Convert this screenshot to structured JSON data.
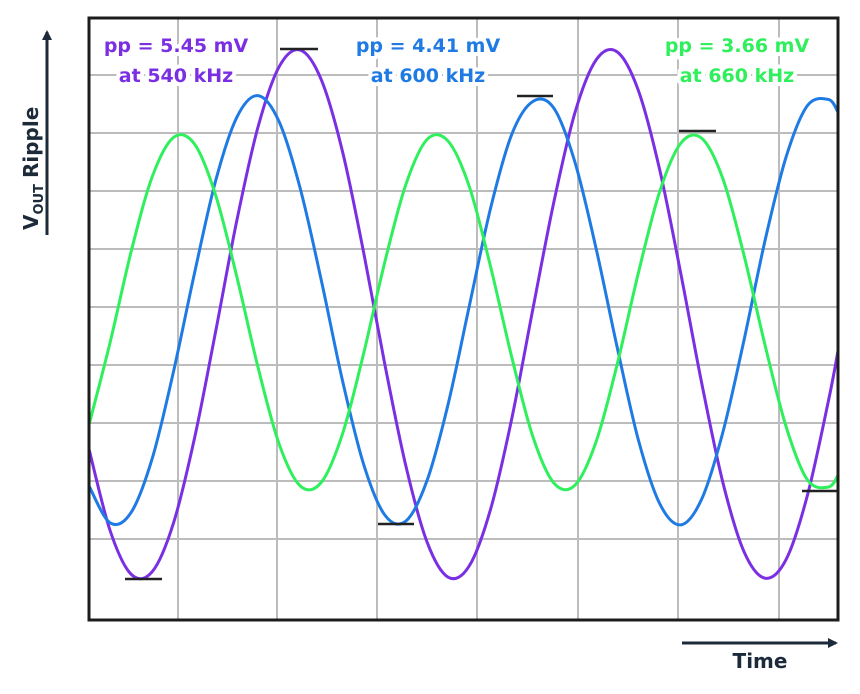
{
  "chart_data": {
    "type": "line",
    "y_label_parts": [
      "V",
      "OUT",
      "Ripple"
    ],
    "x_label": "Time",
    "xlim": [
      0,
      4.43
    ],
    "ylim": [
      -3.15,
      3.05
    ],
    "x": [
      0,
      0.125,
      0.25,
      0.375,
      0.5,
      0.625,
      0.75,
      0.875,
      1,
      1.125,
      1.25,
      1.375,
      1.5,
      1.625,
      1.75,
      1.875,
      2,
      2.125,
      2.25,
      2.375,
      2.5,
      2.625,
      2.75,
      2.875,
      3,
      3.125,
      3.25,
      3.375,
      3.5,
      3.625,
      3.75,
      3.875,
      4,
      4.125,
      4.25,
      4.375,
      4.43
    ],
    "series": [
      {
        "name": "pp = 5.45 mV",
        "frequency_label": "at 540 kHz",
        "color": "#7b2fe3",
        "values": [
          -1.39,
          -2.23,
          -2.68,
          -2.65,
          -2.15,
          -1.27,
          -0.17,
          0.97,
          1.93,
          2.55,
          2.72,
          2.41,
          1.67,
          0.63,
          -0.52,
          -1.57,
          -2.35,
          -2.71,
          -2.59,
          -2.01,
          -1.08,
          0.05,
          1.16,
          2.08,
          2.62,
          2.7,
          2.3,
          1.49,
          0.42,
          -0.72,
          -1.74,
          -2.45,
          -2.72,
          -2.52,
          -1.86,
          -0.88,
          -0.38
        ]
      },
      {
        "name": "pp = 4.41 mV",
        "frequency_label": "at 600 kHz",
        "color": "#1f7be3",
        "values": [
          -1.77,
          -2.15,
          -2.04,
          -1.48,
          -0.59,
          0.43,
          1.38,
          2.03,
          2.25,
          1.98,
          1.29,
          0.34,
          -0.69,
          -1.55,
          -2.07,
          -2.13,
          -1.71,
          -0.92,
          0.09,
          1.09,
          1.85,
          2.19,
          2.12,
          1.56,
          0.67,
          -0.35,
          -1.3,
          -1.95,
          -2.17,
          -1.9,
          -1.21,
          -0.26,
          0.77,
          1.63,
          2.15,
          2.21,
          2.08
        ]
      },
      {
        "name": "pp = 3.66 mV",
        "frequency_label": "at 660 kHz",
        "color": "#2ff05c",
        "values": [
          -1.14,
          -0.29,
          0.65,
          1.42,
          1.82,
          1.75,
          1.22,
          0.38,
          -0.55,
          -1.34,
          -1.77,
          -1.73,
          -1.23,
          -0.4,
          0.54,
          1.34,
          1.8,
          1.78,
          1.31,
          0.49,
          -0.44,
          -1.26,
          -1.74,
          -1.76,
          -1.31,
          -0.51,
          0.43,
          1.26,
          1.76,
          1.81,
          1.39,
          0.6,
          -0.33,
          -1.17,
          -1.71,
          -1.78,
          -1.66
        ]
      }
    ]
  }
}
